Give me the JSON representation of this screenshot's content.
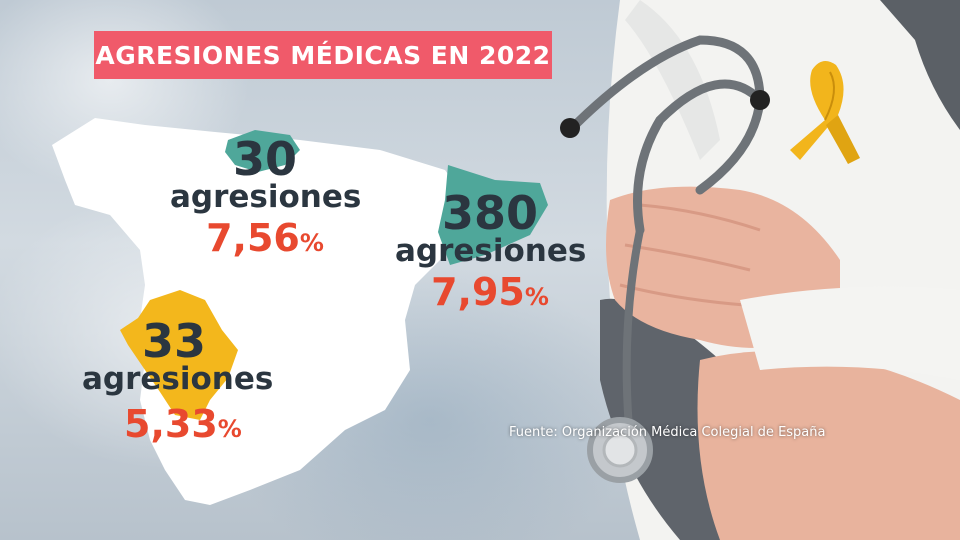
{
  "title": "AGRESIONES MÉDICAS EN 2022",
  "regions": [
    {
      "name_icon": "asturias-region",
      "color": "#4fa79a",
      "count": "30",
      "label": "agresiones",
      "percent": "7,56",
      "percent_sign": "%"
    },
    {
      "name_icon": "cataluna-region",
      "color": "#4fa79a",
      "count": "380",
      "label": "agresiones",
      "percent": "7,95",
      "percent_sign": "%"
    },
    {
      "name_icon": "extremadura-region",
      "color": "#f3b71c",
      "count": "33",
      "label": "agresiones",
      "percent": "5,33",
      "percent_sign": "%"
    }
  ],
  "source": "Fuente: Organización Médica Colegial de España",
  "colors": {
    "title_bg": "#f05a6a",
    "map_fill": "#ffffff",
    "number_text": "#2b3640",
    "percent_text": "#e8492f",
    "ribbon": "#f2b51c"
  },
  "icons": [
    "stethoscope-icon",
    "awareness-ribbon-icon",
    "spain-map"
  ]
}
